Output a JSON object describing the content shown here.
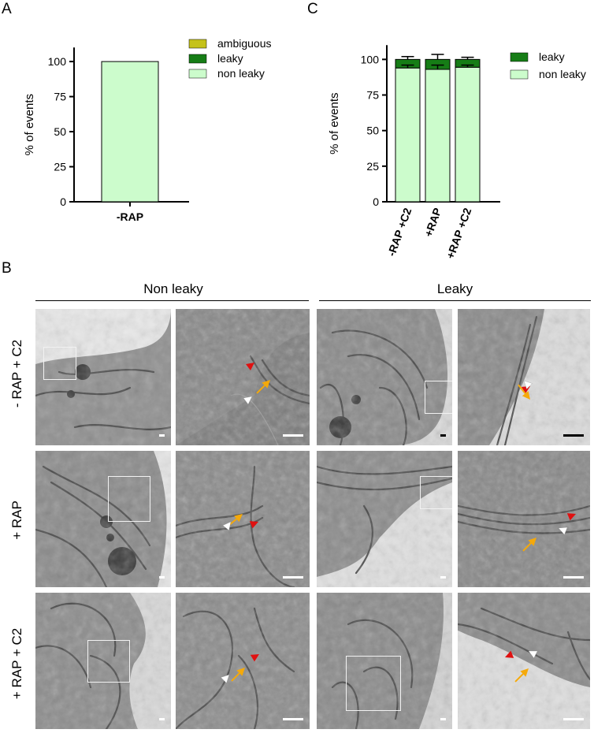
{
  "panels": {
    "a": "A",
    "b": "B",
    "c": "C"
  },
  "chart_a": {
    "type": "bar",
    "stacked": true,
    "categories": [
      "-RAP"
    ],
    "series": [
      {
        "name": "ambiguous",
        "values": [
          0
        ],
        "color": "#c5c21a"
      },
      {
        "name": "leaky",
        "values": [
          0
        ],
        "color": "#167d16"
      },
      {
        "name": "non leaky",
        "values": [
          100
        ],
        "color": "#ccfccc"
      }
    ],
    "ylabel": "% of events",
    "ylim": [
      0,
      110
    ],
    "yticks": [
      0,
      25,
      50,
      75,
      100
    ],
    "legend": "top-right"
  },
  "chart_c": {
    "type": "bar",
    "stacked": true,
    "categories": [
      "-RAP +C2",
      "+RAP",
      "+RAP +C2"
    ],
    "series": [
      {
        "name": "leaky",
        "values": [
          6,
          7,
          5.5
        ],
        "color": "#167d16",
        "error_top": [
          2,
          3.5,
          1.5
        ]
      },
      {
        "name": "non leaky",
        "values": [
          94,
          93,
          94.5
        ],
        "color": "#ccfccc",
        "error": [
          2,
          3,
          1.5
        ]
      }
    ],
    "ylabel": "% of events",
    "ylim": [
      0,
      110
    ],
    "yticks": [
      0,
      25,
      50,
      75,
      100
    ],
    "legend": "top-right"
  },
  "micrographs": {
    "col_headers": [
      "Non leaky",
      "Leaky"
    ],
    "row_labels": [
      "- RAP + C2",
      "+ RAP",
      "+ RAP + C2"
    ]
  },
  "colors": {
    "arrow_red": "#e01010",
    "arrow_orange": "#f5a90a",
    "arrow_white": "#ffffff"
  }
}
